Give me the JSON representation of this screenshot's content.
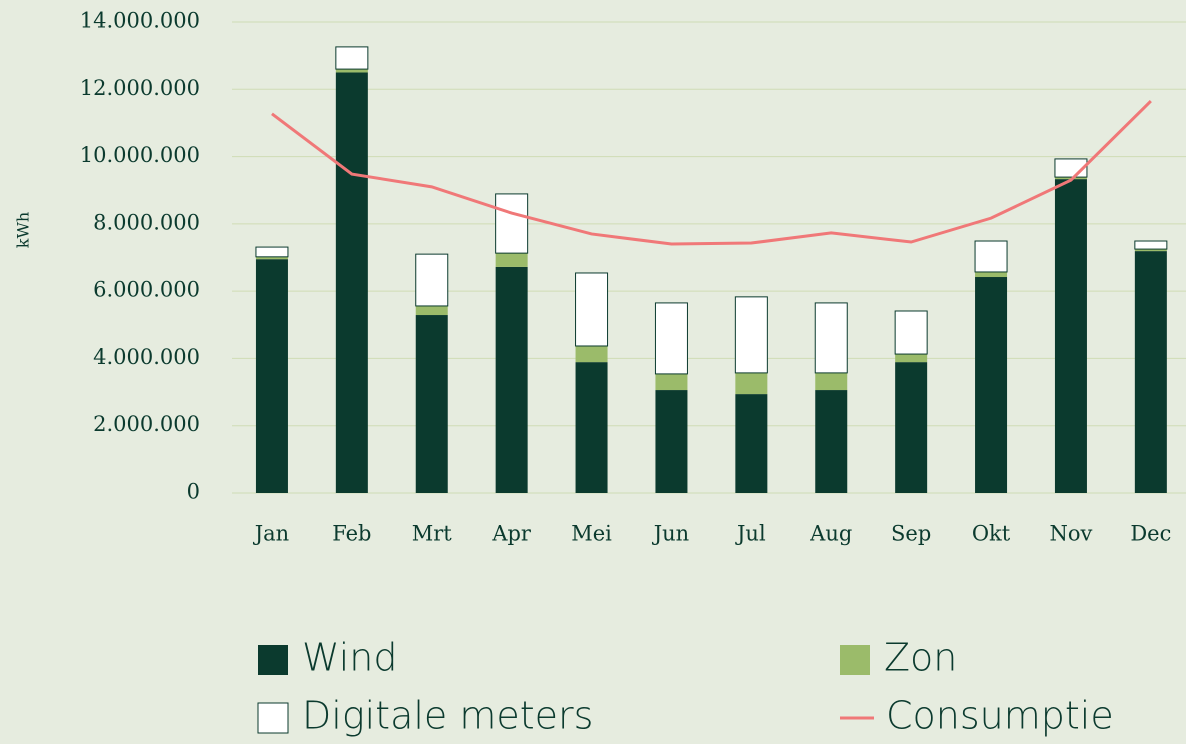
{
  "chart_data": {
    "type": "bar",
    "y_label": "kWh",
    "categories": [
      "Jan",
      "Feb",
      "Mrt",
      "Apr",
      "Mei",
      "Jun",
      "Jul",
      "Aug",
      "Sep",
      "Okt",
      "Nov",
      "Dec"
    ],
    "series": [
      {
        "name": "Wind",
        "color": "#0b3a2e",
        "stacked": true,
        "values": [
          6950000,
          12500000,
          5290000,
          6720000,
          3890000,
          3060000,
          2940000,
          3060000,
          3890000,
          6420000,
          9330000,
          7190000
        ]
      },
      {
        "name": "Zon",
        "color": "#9bbb6a",
        "stacked": true,
        "values": [
          70000,
          100000,
          270000,
          410000,
          480000,
          480000,
          630000,
          510000,
          240000,
          150000,
          60000,
          60000
        ]
      },
      {
        "name": "Digitale meters",
        "color": "#ffffff",
        "stacked": true,
        "values": [
          290000,
          660000,
          1540000,
          1760000,
          2170000,
          2110000,
          2260000,
          2080000,
          1280000,
          920000,
          540000,
          240000
        ]
      },
      {
        "name": "Consumptie",
        "color": "#f07878",
        "type": "line",
        "values": [
          11270000,
          9480000,
          9100000,
          8320000,
          7700000,
          7400000,
          7430000,
          7730000,
          7460000,
          8170000,
          9300000,
          11650000
        ]
      }
    ],
    "ylim": [
      0,
      14000000
    ],
    "yticks": [
      0,
      {
        "value": 2000000,
        "label": "2.000.000"
      },
      {
        "value": 4000000,
        "label": "4.000.000"
      },
      {
        "value": 6000000,
        "label": "6.000.000"
      },
      {
        "value": 8000000,
        "label": "8.000.000"
      },
      {
        "value": 10000000,
        "label": "10.000.000"
      },
      {
        "value": 12000000,
        "label": "12.000.000"
      },
      {
        "value": 14000000,
        "label": "14.000.000"
      }
    ],
    "grid": true,
    "legend": "bottom"
  }
}
